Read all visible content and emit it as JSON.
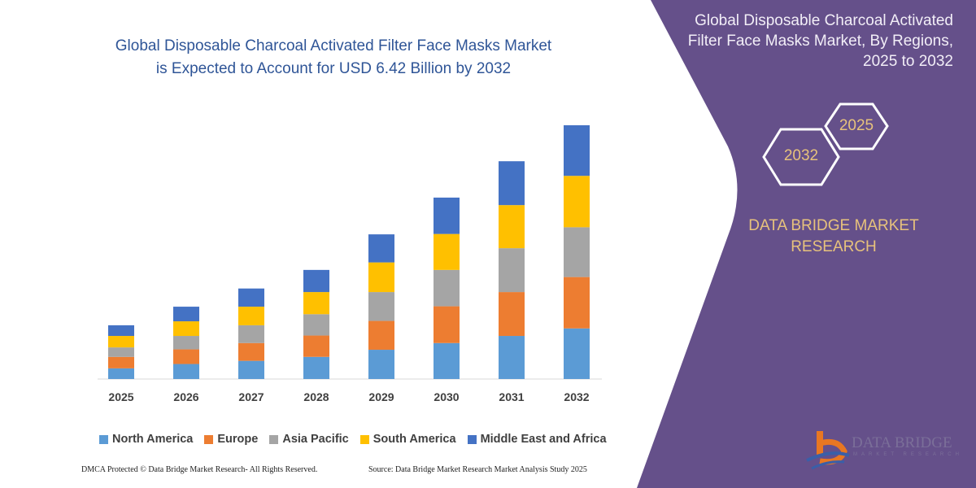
{
  "chart_data": {
    "type": "bar",
    "stacked": true,
    "title": "Global Disposable Charcoal Activated Filter Face Masks Market is Expected to Account for USD 6.42 Billion by 2032",
    "categories": [
      "2025",
      "2026",
      "2027",
      "2028",
      "2029",
      "2030",
      "2031",
      "2032"
    ],
    "series": [
      {
        "name": "North America",
        "color": "#5b9bd5",
        "values": [
          0.27,
          0.38,
          0.46,
          0.56,
          0.74,
          0.91,
          1.09,
          1.28
        ]
      },
      {
        "name": "Europe",
        "color": "#ed7d31",
        "values": [
          0.29,
          0.37,
          0.45,
          0.54,
          0.73,
          0.93,
          1.11,
          1.3
        ]
      },
      {
        "name": "Asia Pacific",
        "color": "#a5a5a5",
        "values": [
          0.24,
          0.34,
          0.45,
          0.54,
          0.73,
          0.92,
          1.11,
          1.26
        ]
      },
      {
        "name": "South America",
        "color": "#ffc000",
        "values": [
          0.29,
          0.37,
          0.47,
          0.56,
          0.75,
          0.91,
          1.09,
          1.3
        ]
      },
      {
        "name": "Middle East and Africa",
        "color": "#4472c4",
        "values": [
          0.27,
          0.37,
          0.46,
          0.56,
          0.71,
          0.92,
          1.11,
          1.28
        ]
      }
    ],
    "xlabel": "",
    "ylabel": "",
    "grid": false,
    "legend": "bottom"
  },
  "title_lines": [
    "Global Disposable Charcoal Activated Filter Face Masks Market",
    "is Expected to Account for USD 6.42 Billion by 2032"
  ],
  "side": {
    "title": "Global Disposable Charcoal Activated Filter Face Masks Market, By Regions, 2025 to 2032",
    "hex_start": "2025",
    "hex_end": "2032",
    "brand_lines": [
      "DATA BRIDGE MARKET",
      "RESEARCH"
    ],
    "logo_text": "DATA BRIDGE",
    "logo_sub": "MARKET RESEARCH",
    "panel_color": "#65508a"
  },
  "footer": {
    "left": "DMCA Protected © Data Bridge Market Research-  All Rights Reserved.",
    "right": "Source: Data Bridge Market Research  Market Analysis Study 2025"
  }
}
